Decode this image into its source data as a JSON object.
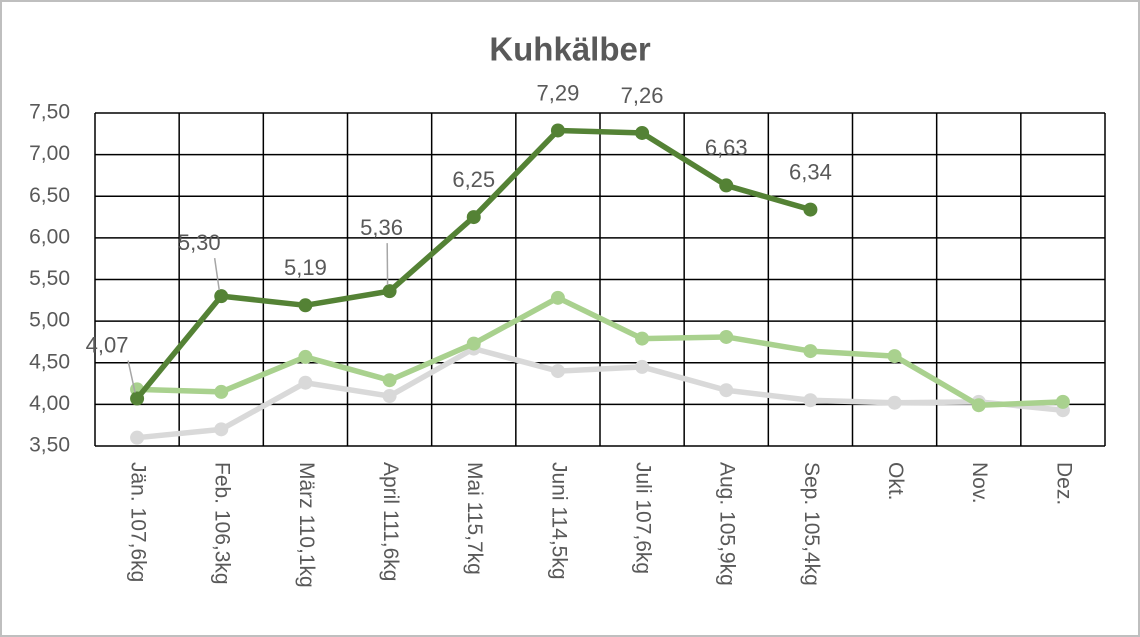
{
  "chart_data": {
    "type": "line",
    "title": "Kuhkälber",
    "categories": [
      "Jän.  107,6kg",
      "Feb.  106,3kg",
      "März 110,1kg",
      "April  111,6kg",
      "Mai  115,7kg",
      "Juni  114,5kg",
      "Juli  107,6kg",
      "Aug.  105,9kg",
      "Sep.  105,4kg",
      "Okt.",
      "Nov.",
      "Dez."
    ],
    "series": [
      {
        "color": "#d9d9d9",
        "values": [
          3.6,
          3.7,
          4.26,
          4.1,
          4.67,
          4.4,
          4.45,
          4.17,
          4.05,
          4.02,
          4.03,
          3.93
        ]
      },
      {
        "color": "#a9d18e",
        "values": [
          4.18,
          4.15,
          4.57,
          4.29,
          4.73,
          5.28,
          4.79,
          4.81,
          4.64,
          4.58,
          3.99,
          4.03
        ]
      },
      {
        "color": "#548235",
        "values": [
          4.07,
          5.3,
          5.19,
          5.36,
          6.25,
          7.29,
          7.26,
          6.63,
          6.34,
          null,
          null,
          null
        ],
        "value_labels": [
          "4,07",
          "5,30",
          "5,19",
          "5,36",
          "6,25",
          "7,29",
          "7,26",
          "6,63",
          "6,34",
          null,
          null,
          null
        ]
      }
    ],
    "ylim": [
      3.5,
      7.5
    ],
    "yticks": [
      {
        "value": 3.5,
        "label": "3,50"
      },
      {
        "value": 4,
        "label": "4,00"
      },
      {
        "value": 4.5,
        "label": "4,50"
      },
      {
        "value": 5,
        "label": "5,00"
      },
      {
        "value": 5.5,
        "label": "5,50"
      },
      {
        "value": 6,
        "label": "6,00"
      },
      {
        "value": 6.5,
        "label": "6,50"
      },
      {
        "value": 7,
        "label": "7,00"
      },
      {
        "value": 7.5,
        "label": "7,50"
      }
    ],
    "grid": true
  }
}
